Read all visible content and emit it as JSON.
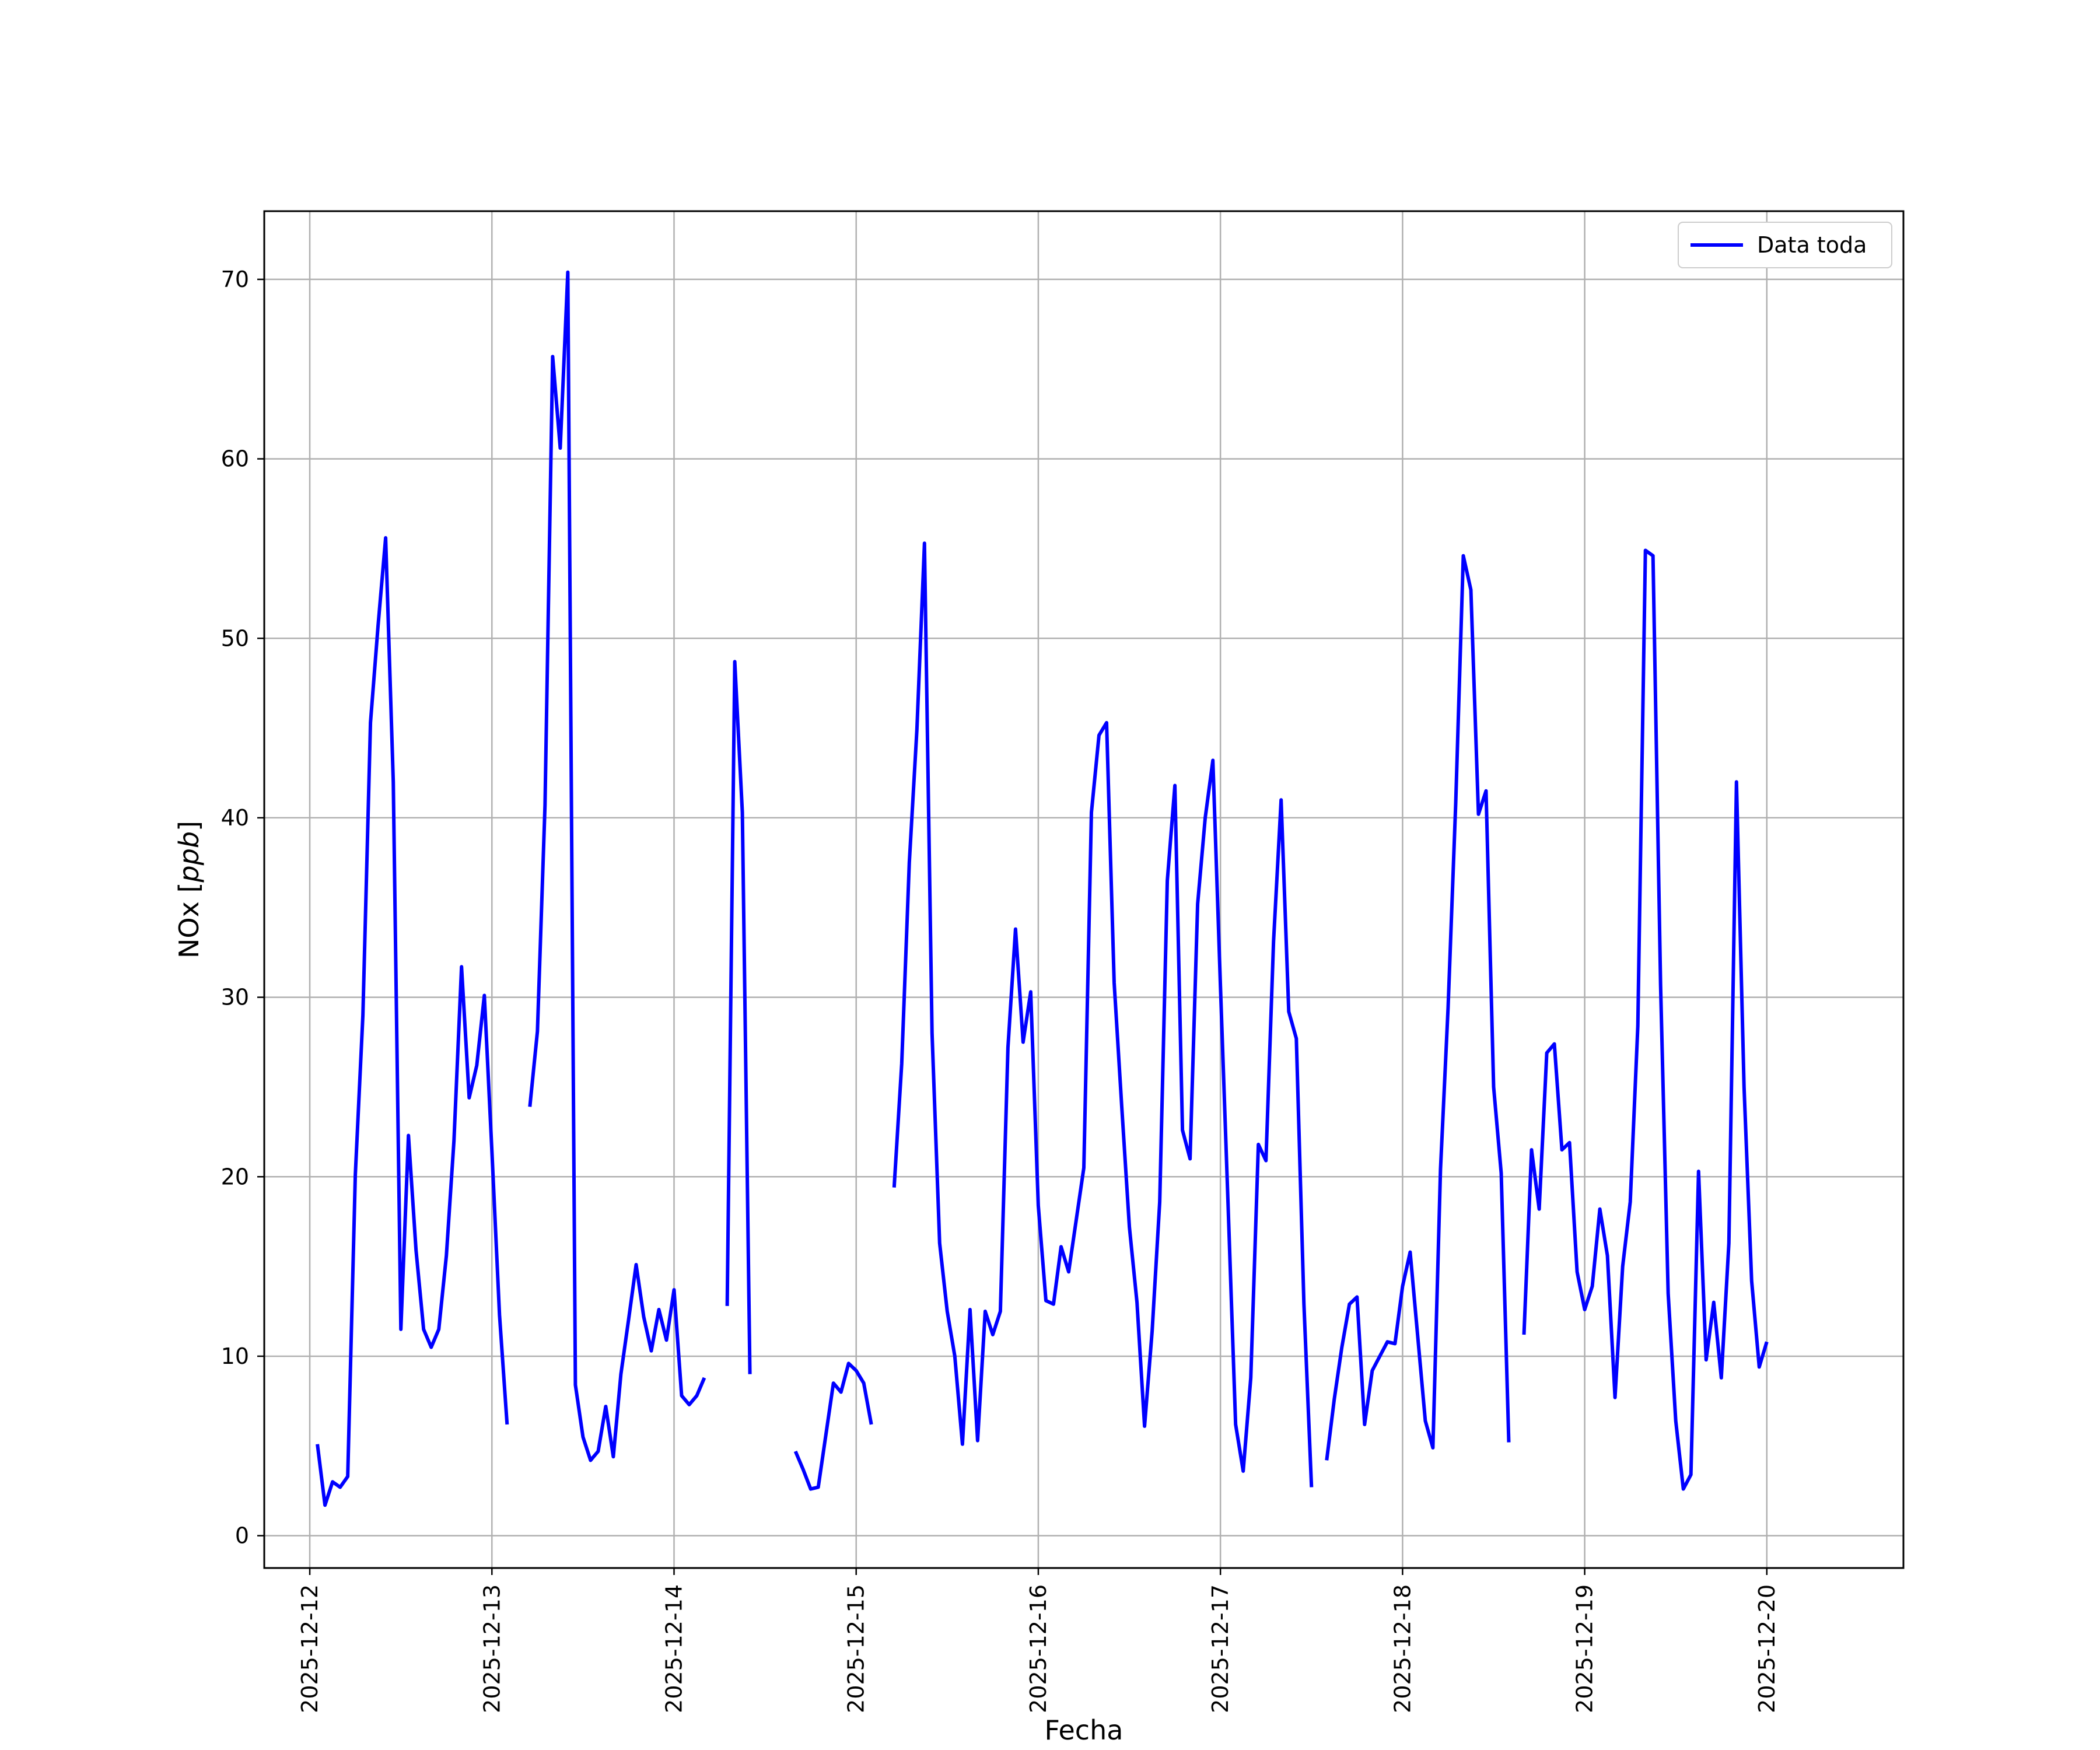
{
  "chart_data": {
    "type": "line",
    "xlabel": "Fecha",
    "ylabel_prefix": "NOx [",
    "ylabel_unit": "ppb",
    "ylabel_suffix": "]",
    "xlim": [
      "2025-12-11T18:00",
      "2025-12-20T18:00"
    ],
    "ylim": [
      -1.8,
      73.8
    ],
    "grid": true,
    "legend_position": "top-right",
    "x_ticks": [
      "2025-12-12",
      "2025-12-13",
      "2025-12-14",
      "2025-12-15",
      "2025-12-16",
      "2025-12-17",
      "2025-12-18",
      "2025-12-19",
      "2025-12-20"
    ],
    "y_ticks": [
      0,
      10,
      20,
      30,
      40,
      50,
      60,
      70
    ],
    "series": [
      {
        "name": "Data toda",
        "color": "#0000ff",
        "points": [
          [
            "2025-12-12T01:00",
            5.1
          ],
          [
            "2025-12-12T02:00",
            1.7
          ],
          [
            "2025-12-12T03:00",
            3.0
          ],
          [
            "2025-12-12T04:00",
            2.7
          ],
          [
            "2025-12-12T05:00",
            3.3
          ],
          [
            "2025-12-12T06:00",
            20.1
          ],
          [
            "2025-12-12T07:00",
            29.0
          ],
          [
            "2025-12-12T08:00",
            45.3
          ],
          [
            "2025-12-12T09:00",
            50.7
          ],
          [
            "2025-12-12T10:00",
            55.6
          ],
          [
            "2025-12-12T11:00",
            42.0
          ],
          [
            "2025-12-12T12:00",
            11.5
          ],
          [
            "2025-12-12T13:00",
            22.3
          ],
          [
            "2025-12-12T14:00",
            15.9
          ],
          [
            "2025-12-12T15:00",
            11.5
          ],
          [
            "2025-12-12T16:00",
            10.5
          ],
          [
            "2025-12-12T17:00",
            11.5
          ],
          [
            "2025-12-12T18:00",
            15.6
          ],
          [
            "2025-12-12T19:00",
            22.0
          ],
          [
            "2025-12-12T20:00",
            31.7
          ],
          [
            "2025-12-12T21:00",
            24.4
          ],
          [
            "2025-12-12T22:00",
            26.2
          ],
          [
            "2025-12-12T23:00",
            30.1
          ],
          [
            "2025-12-13T00:00",
            21.4
          ],
          [
            "2025-12-13T01:00",
            12.3
          ],
          [
            "2025-12-13T02:00",
            6.2
          ],
          null,
          [
            "2025-12-13T05:00",
            23.9
          ],
          [
            "2025-12-13T06:00",
            28.1
          ],
          [
            "2025-12-13T07:00",
            40.7
          ],
          [
            "2025-12-13T08:00",
            65.7
          ],
          [
            "2025-12-13T09:00",
            60.6
          ],
          [
            "2025-12-13T10:00",
            70.4
          ],
          [
            "2025-12-13T11:00",
            8.4
          ],
          [
            "2025-12-13T12:00",
            5.5
          ],
          [
            "2025-12-13T13:00",
            4.2
          ],
          [
            "2025-12-13T14:00",
            4.7
          ],
          [
            "2025-12-13T15:00",
            7.2
          ],
          [
            "2025-12-13T16:00",
            4.4
          ],
          [
            "2025-12-13T17:00",
            9.0
          ],
          [
            "2025-12-13T18:00",
            12.0
          ],
          [
            "2025-12-13T19:00",
            15.1
          ],
          [
            "2025-12-13T20:00",
            12.2
          ],
          [
            "2025-12-13T21:00",
            10.3
          ],
          [
            "2025-12-13T22:00",
            12.6
          ],
          [
            "2025-12-13T23:00",
            10.9
          ],
          [
            "2025-12-14T00:00",
            13.7
          ],
          [
            "2025-12-14T01:00",
            7.8
          ],
          [
            "2025-12-14T02:00",
            7.3
          ],
          [
            "2025-12-14T03:00",
            7.8
          ],
          [
            "2025-12-14T04:00",
            8.8
          ],
          null,
          [
            "2025-12-14T07:00",
            12.8
          ],
          [
            "2025-12-14T08:00",
            48.7
          ],
          [
            "2025-12-14T09:00",
            40.3
          ],
          [
            "2025-12-14T10:00",
            9.0
          ],
          null,
          [
            "2025-12-14T16:00",
            4.7
          ],
          [
            "2025-12-14T17:00",
            3.7
          ],
          [
            "2025-12-14T18:00",
            2.6
          ],
          [
            "2025-12-14T19:00",
            2.7
          ],
          [
            "2025-12-14T20:00",
            5.6
          ],
          [
            "2025-12-14T21:00",
            8.5
          ],
          [
            "2025-12-14T22:00",
            8.0
          ],
          [
            "2025-12-14T23:00",
            9.6
          ],
          [
            "2025-12-15T00:00",
            9.2
          ],
          [
            "2025-12-15T01:00",
            8.5
          ],
          [
            "2025-12-15T02:00",
            6.2
          ],
          null,
          [
            "2025-12-15T05:00",
            19.4
          ],
          [
            "2025-12-15T06:00",
            26.3
          ],
          [
            "2025-12-15T07:00",
            37.5
          ],
          [
            "2025-12-15T08:00",
            44.9
          ],
          [
            "2025-12-15T09:00",
            55.3
          ],
          [
            "2025-12-15T10:00",
            28.0
          ],
          [
            "2025-12-15T11:00",
            16.3
          ],
          [
            "2025-12-15T12:00",
            12.5
          ],
          [
            "2025-12-15T13:00",
            10.0
          ],
          [
            "2025-12-15T14:00",
            5.1
          ],
          [
            "2025-12-15T15:00",
            12.6
          ],
          [
            "2025-12-15T16:00",
            5.3
          ],
          [
            "2025-12-15T17:00",
            12.5
          ],
          [
            "2025-12-15T18:00",
            11.2
          ],
          [
            "2025-12-15T19:00",
            12.5
          ],
          [
            "2025-12-15T20:00",
            27.2
          ],
          [
            "2025-12-15T21:00",
            33.8
          ],
          [
            "2025-12-15T22:00",
            27.5
          ],
          [
            "2025-12-15T23:00",
            30.3
          ],
          [
            "2025-12-16T00:00",
            18.4
          ],
          [
            "2025-12-16T01:00",
            13.1
          ],
          [
            "2025-12-16T02:00",
            12.9
          ],
          [
            "2025-12-16T03:00",
            16.1
          ],
          [
            "2025-12-16T04:00",
            14.7
          ],
          [
            "2025-12-16T05:00",
            17.6
          ],
          [
            "2025-12-16T06:00",
            20.5
          ],
          [
            "2025-12-16T07:00",
            40.3
          ],
          [
            "2025-12-16T08:00",
            44.6
          ],
          [
            "2025-12-16T09:00",
            45.3
          ],
          [
            "2025-12-16T10:00",
            30.8
          ],
          [
            "2025-12-16T11:00",
            23.9
          ],
          [
            "2025-12-16T12:00",
            17.2
          ],
          [
            "2025-12-16T13:00",
            13.0
          ],
          [
            "2025-12-16T14:00",
            6.1
          ],
          [
            "2025-12-16T15:00",
            11.4
          ],
          [
            "2025-12-16T16:00",
            18.6
          ],
          [
            "2025-12-16T17:00",
            36.5
          ],
          [
            "2025-12-16T18:00",
            41.8
          ],
          [
            "2025-12-16T19:00",
            22.6
          ],
          [
            "2025-12-16T20:00",
            21.0
          ],
          [
            "2025-12-16T21:00",
            35.2
          ],
          [
            "2025-12-16T22:00",
            40.0
          ],
          [
            "2025-12-16T23:00",
            43.2
          ],
          [
            "2025-12-17T00:00",
            30.6
          ],
          [
            "2025-12-17T01:00",
            18.5
          ],
          [
            "2025-12-17T02:00",
            6.2
          ],
          [
            "2025-12-17T03:00",
            3.6
          ],
          [
            "2025-12-17T04:00",
            8.8
          ],
          [
            "2025-12-17T05:00",
            21.8
          ],
          [
            "2025-12-17T06:00",
            20.9
          ],
          [
            "2025-12-17T07:00",
            33.1
          ],
          [
            "2025-12-17T08:00",
            41.0
          ],
          [
            "2025-12-17T09:00",
            29.2
          ],
          [
            "2025-12-17T10:00",
            27.7
          ],
          [
            "2025-12-17T11:00",
            12.9
          ],
          [
            "2025-12-17T12:00",
            2.7
          ],
          null,
          [
            "2025-12-17T14:00",
            4.2
          ],
          [
            "2025-12-17T15:00",
            7.6
          ],
          [
            "2025-12-17T16:00",
            10.5
          ],
          [
            "2025-12-17T17:00",
            12.9
          ],
          [
            "2025-12-17T18:00",
            13.3
          ],
          [
            "2025-12-17T19:00",
            6.2
          ],
          [
            "2025-12-17T20:00",
            9.2
          ],
          [
            "2025-12-17T21:00",
            10.0
          ],
          [
            "2025-12-17T22:00",
            10.8
          ],
          [
            "2025-12-17T23:00",
            10.7
          ],
          [
            "2025-12-18T00:00",
            13.9
          ],
          [
            "2025-12-18T01:00",
            15.8
          ],
          [
            "2025-12-18T02:00",
            11.1
          ],
          [
            "2025-12-18T03:00",
            6.4
          ],
          [
            "2025-12-18T04:00",
            4.9
          ],
          [
            "2025-12-18T05:00",
            20.4
          ],
          [
            "2025-12-18T06:00",
            29.4
          ],
          [
            "2025-12-18T07:00",
            40.8
          ],
          [
            "2025-12-18T08:00",
            54.6
          ],
          [
            "2025-12-18T09:00",
            52.7
          ],
          [
            "2025-12-18T10:00",
            40.2
          ],
          [
            "2025-12-18T11:00",
            41.5
          ],
          [
            "2025-12-18T12:00",
            25.0
          ],
          [
            "2025-12-18T13:00",
            20.2
          ],
          [
            "2025-12-18T14:00",
            5.2
          ],
          null,
          [
            "2025-12-18T16:00",
            11.2
          ],
          [
            "2025-12-18T17:00",
            21.5
          ],
          [
            "2025-12-18T18:00",
            18.2
          ],
          [
            "2025-12-18T19:00",
            26.9
          ],
          [
            "2025-12-18T20:00",
            27.4
          ],
          [
            "2025-12-18T21:00",
            21.5
          ],
          [
            "2025-12-18T22:00",
            21.9
          ],
          [
            "2025-12-18T23:00",
            14.7
          ],
          [
            "2025-12-19T00:00",
            12.6
          ],
          [
            "2025-12-19T01:00",
            13.9
          ],
          [
            "2025-12-19T02:00",
            18.2
          ],
          [
            "2025-12-19T03:00",
            15.6
          ],
          [
            "2025-12-19T04:00",
            7.7
          ],
          [
            "2025-12-19T05:00",
            15.0
          ],
          [
            "2025-12-19T06:00",
            18.6
          ],
          [
            "2025-12-19T07:00",
            28.4
          ],
          [
            "2025-12-19T08:00",
            54.9
          ],
          [
            "2025-12-19T09:00",
            54.6
          ],
          [
            "2025-12-19T10:00",
            30.7
          ],
          [
            "2025-12-19T11:00",
            13.5
          ],
          [
            "2025-12-19T12:00",
            6.4
          ],
          [
            "2025-12-19T13:00",
            2.6
          ],
          [
            "2025-12-19T14:00",
            3.4
          ],
          [
            "2025-12-19T15:00",
            20.3
          ],
          [
            "2025-12-19T16:00",
            9.8
          ],
          [
            "2025-12-19T17:00",
            13.0
          ],
          [
            "2025-12-19T18:00",
            8.8
          ],
          [
            "2025-12-19T19:00",
            16.3
          ],
          [
            "2025-12-19T20:00",
            42.0
          ],
          [
            "2025-12-19T21:00",
            25.0
          ],
          [
            "2025-12-19T22:00",
            14.2
          ],
          [
            "2025-12-19T23:00",
            9.4
          ],
          [
            "2025-12-20T00:00",
            10.8
          ]
        ]
      }
    ]
  }
}
